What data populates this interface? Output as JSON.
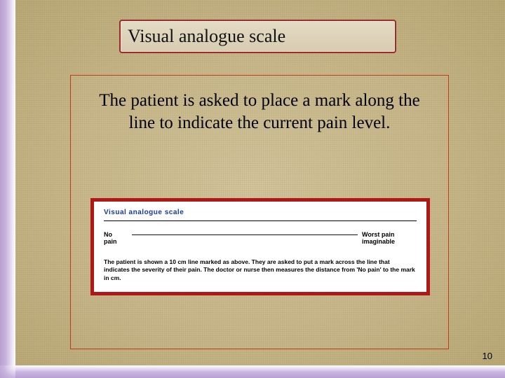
{
  "slide": {
    "title": "Visual analogue scale",
    "body": "The patient is asked to place a mark along the line to indicate the current pain level.",
    "page_number": "10"
  },
  "vas": {
    "heading": "Visual analogue scale",
    "left_label_line1": "No",
    "left_label_line2": "pain",
    "right_label_line1": "Worst pain",
    "right_label_line2": "imaginable",
    "caption": "The patient is shown a 10 cm line marked as above. They are asked to put a mark across the line that indicates the severity of their pain. The doctor or nurse then measures the distance from 'No pain' to the mark in cm."
  },
  "colors": {
    "title_border": "#9e2b2b",
    "content_border": "#c23a1e",
    "vas_border": "#b01717",
    "vas_heading": "#183a9e",
    "canvas_bg": "#c9b98f",
    "edge_purple": "#b89fd0"
  }
}
